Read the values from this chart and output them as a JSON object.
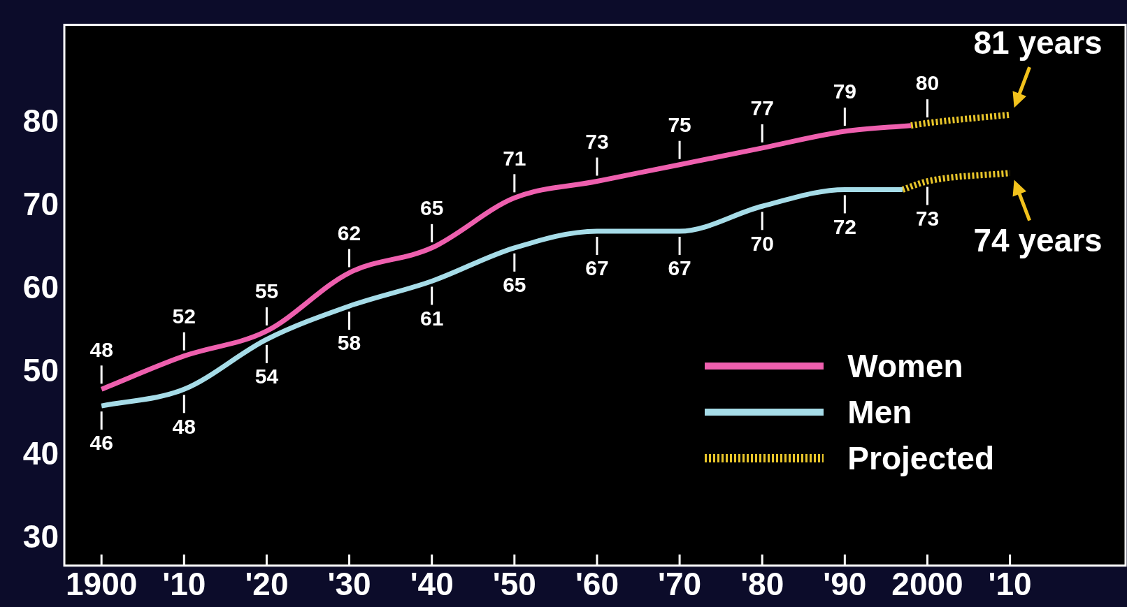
{
  "chart_data": {
    "type": "line",
    "xlim": [
      1895.5,
      2024
    ],
    "ylim": [
      26.8,
      91.8
    ],
    "xticks": [
      {
        "value": 1900,
        "label": "1900"
      },
      {
        "value": 1910,
        "label": "'10"
      },
      {
        "value": 1920,
        "label": "'20"
      },
      {
        "value": 1930,
        "label": "'30"
      },
      {
        "value": 1940,
        "label": "'40"
      },
      {
        "value": 1950,
        "label": "'50"
      },
      {
        "value": 1960,
        "label": "'60"
      },
      {
        "value": 1970,
        "label": "'70"
      },
      {
        "value": 1980,
        "label": "'80"
      },
      {
        "value": 1990,
        "label": "'90"
      },
      {
        "value": 2000,
        "label": "2000"
      },
      {
        "value": 2010,
        "label": "'10"
      }
    ],
    "yticks": [
      30,
      40,
      50,
      60,
      70,
      80
    ],
    "grid": false,
    "legend": "bottom right",
    "marker": "none",
    "series": [
      {
        "name": "Women",
        "color": "#ee5fae",
        "line_style": "solid",
        "x": [
          1900,
          1910,
          1920,
          1930,
          1940,
          1950,
          1960,
          1970,
          1980,
          1990,
          1998
        ],
        "values": [
          48,
          52,
          55,
          62,
          65,
          71,
          73,
          75,
          77,
          79,
          79.7
        ],
        "value_labels": [
          "48",
          "52",
          "55",
          "62",
          "65",
          "71",
          "73",
          "75",
          "77",
          "79",
          null
        ]
      },
      {
        "name": "Men",
        "color": "#a6dce8",
        "line_style": "solid",
        "x": [
          1900,
          1910,
          1920,
          1930,
          1940,
          1950,
          1960,
          1970,
          1980,
          1990,
          1997
        ],
        "values": [
          46,
          48,
          54,
          58,
          61,
          65,
          67,
          67,
          70,
          72,
          72
        ],
        "value_labels": [
          "46",
          "48",
          "54",
          "58",
          "61",
          "65",
          "67",
          "67",
          "70",
          "72",
          null
        ]
      },
      {
        "name": "Projected",
        "color": "#e8c52a",
        "line_style": "dotted",
        "x": [
          1998,
          2000,
          2010
        ],
        "values": [
          79.7,
          80,
          81
        ],
        "value_labels": [
          null,
          "80",
          null
        ]
      },
      {
        "color": "#e8c52a",
        "line_style": "dotted",
        "x": [
          1997,
          2000,
          2010
        ],
        "values": [
          72,
          73,
          74
        ],
        "value_labels": [
          null,
          "73",
          null
        ]
      }
    ],
    "annotations": [
      {
        "text": "81 years",
        "x": 2010,
        "y": 81
      },
      {
        "text": "74 years",
        "x": 2010,
        "y": 74
      }
    ]
  }
}
